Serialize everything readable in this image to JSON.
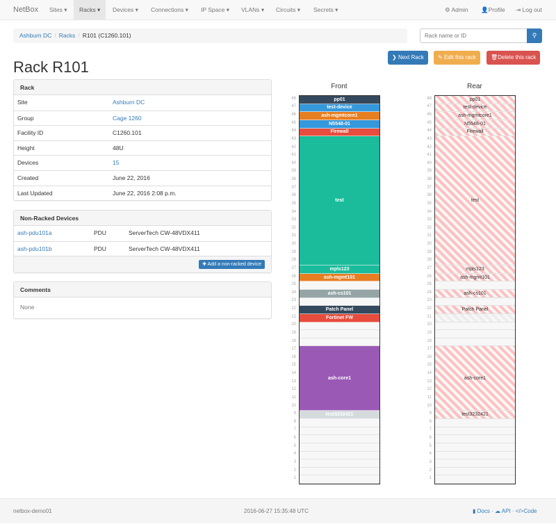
{
  "nav": {
    "brand": "NetBox",
    "items": [
      "Sites ▾",
      "Racks ▾",
      "Devices ▾",
      "Connections ▾",
      "IP Space ▾",
      "VLANs ▾",
      "Circuits ▾",
      "Secrets ▾"
    ],
    "active": 1,
    "admin": "Admin",
    "profile": "Profile",
    "logout": "Log out"
  },
  "breadcrumb": [
    "Ashburn DC",
    "Racks",
    "R101 (C1260.101)"
  ],
  "search": {
    "placeholder": "Rack name or ID"
  },
  "buttons": {
    "next": "Next Rack",
    "edit": "Edit this rack",
    "delete": "Delete this rack"
  },
  "colors": {
    "primary": "#337ab7",
    "warning": "#f0ad4e",
    "danger": "#d9534f"
  },
  "title": "Rack R101",
  "rack_panel": {
    "heading": "Rack",
    "rows": [
      {
        "label": "Site",
        "value": "Ashburn DC",
        "link": true
      },
      {
        "label": "Group",
        "value": "Cage 1260",
        "link": true
      },
      {
        "label": "Facility ID",
        "value": "C1260.101"
      },
      {
        "label": "Height",
        "value": "48U"
      },
      {
        "label": "Devices",
        "value": "15",
        "link": true
      },
      {
        "label": "Created",
        "value": "June 22, 2016"
      },
      {
        "label": "Last Updated",
        "value": "June 22, 2016 2:08 p.m."
      }
    ]
  },
  "non_racked": {
    "heading": "Non-Racked Devices",
    "rows": [
      {
        "name": "ash-pdu101a",
        "role": "PDU",
        "type": "ServerTech CW-48VDX411"
      },
      {
        "name": "ash-pdu101b",
        "role": "PDU",
        "type": "ServerTech CW-48VDX411"
      }
    ],
    "add_label": "Add a non-racked device"
  },
  "comments": {
    "heading": "Comments",
    "body": "None"
  },
  "rack": {
    "units": 48,
    "front_label": "Front",
    "rear_label": "Rear",
    "devices": [
      {
        "name": "pp01",
        "position": 48,
        "height": 1,
        "color": "#34495e"
      },
      {
        "name": "test-device",
        "position": 47,
        "height": 1,
        "color": "#3498db"
      },
      {
        "name": "ash-mgmtcore1",
        "position": 46,
        "height": 1,
        "color": "#e67e22"
      },
      {
        "name": "N5548-01",
        "position": 45,
        "height": 1,
        "color": "#3498db"
      },
      {
        "name": "Firewall",
        "position": 44,
        "height": 1,
        "color": "#e74c3c"
      },
      {
        "name": "test",
        "position": 28,
        "height": 16,
        "color": "#1abc9c"
      },
      {
        "name": "mpls123",
        "position": 27,
        "height": 1,
        "color": "#1abc9c"
      },
      {
        "name": "ash-mgmt101",
        "position": 26,
        "height": 1,
        "color": "#e67e22"
      },
      {
        "name": "ash-cs101",
        "position": 24,
        "height": 1,
        "color": "#95a5a6"
      },
      {
        "name": "Patch Panel",
        "position": 22,
        "height": 1,
        "color": "#34495e"
      },
      {
        "name": "Fortinet FW",
        "position": 21,
        "height": 1,
        "color": "#e74c3c",
        "front_only": true
      },
      {
        "name": "ash-core1",
        "position": 10,
        "height": 8,
        "color": "#9b59b6"
      },
      {
        "name": "test3232421",
        "position": 9,
        "height": 1,
        "color": "#d5dbdd"
      }
    ]
  },
  "footer": {
    "host": "netbox-demo01",
    "time": "2016-06-27 15:35:48 UTC",
    "docs": "Docs",
    "api": "API",
    "code": "Code"
  }
}
